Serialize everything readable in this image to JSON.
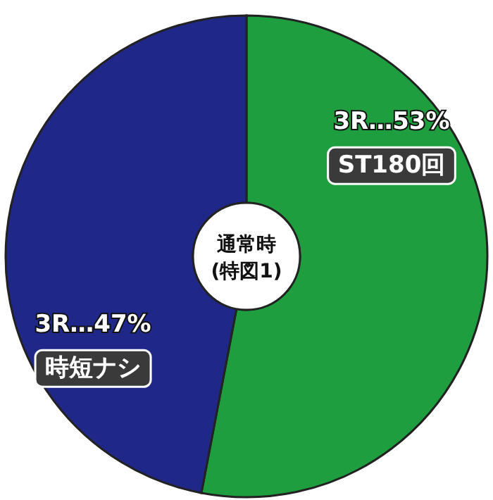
{
  "chart_data": {
    "type": "donut",
    "title": "通常時",
    "subtitle": "(特図1)",
    "categories": [
      "ST180回",
      "時短ナシ"
    ],
    "values": [
      53,
      47
    ],
    "colors": [
      "#1e9e3e",
      "#1f2788"
    ],
    "value_labels": [
      "3R…53%",
      "3R…47%"
    ]
  }
}
